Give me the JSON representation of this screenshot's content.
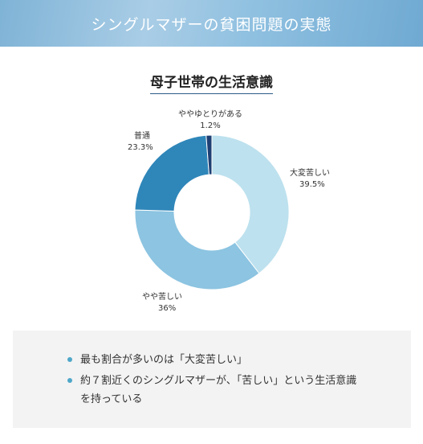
{
  "header": {
    "title": "シングルマザーの貧困問題の実態"
  },
  "chart_data": {
    "type": "pie",
    "title": "母子世帯の生活意識",
    "slices": [
      {
        "label": "大変苦しい",
        "value": 39.5,
        "value_text": "39.5%",
        "color": "#bde1ee"
      },
      {
        "label": "やや苦しい",
        "value": 36,
        "value_text": "36%",
        "color": "#8cc4e1"
      },
      {
        "label": "普通",
        "value": 23.3,
        "value_text": "23.3%",
        "color": "#2f86b9"
      },
      {
        "label": "ややゆとりがある",
        "value": 1.2,
        "value_text": "1.2%",
        "color": "#1e3f73"
      }
    ]
  },
  "summary": {
    "bullets": [
      "最も割合が多いのは「大変苦しい」",
      "約７割近くのシングルマザーが、「苦しい」という生活意識を持っている"
    ]
  }
}
